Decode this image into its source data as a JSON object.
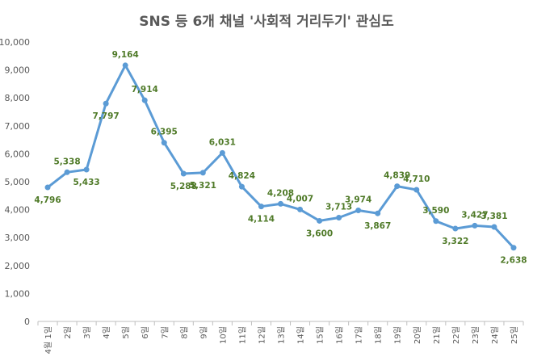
{
  "chart_data": {
    "type": "line",
    "title": "SNS 등 6개 채널 '사회적 거리두기' 관심도",
    "xlabel": "",
    "ylabel": "",
    "categories": [
      "4월 1일",
      "2일",
      "3일",
      "4일",
      "5일",
      "6일",
      "7일",
      "8일",
      "9일",
      "10일",
      "11일",
      "12일",
      "13일",
      "14일",
      "15일",
      "16일",
      "17일",
      "18일",
      "19일",
      "20일",
      "21일",
      "22일",
      "23일",
      "24일",
      "25일"
    ],
    "series": [
      {
        "values": [
          4796,
          5338,
          5433,
          7797,
          9164,
          7914,
          6395,
          5288,
          5321,
          6031,
          4824,
          4114,
          4208,
          4007,
          3600,
          3713,
          3974,
          3867,
          4839,
          4710,
          3590,
          3322,
          3427,
          3381,
          2638
        ]
      }
    ],
    "data_labels": [
      "4,796",
      "5,338",
      "5,433",
      "7,797",
      "9,164",
      "7,914",
      "6,395",
      "5,288",
      "5,321",
      "6,031",
      "4,824",
      "4,114",
      "4,208",
      "4,007",
      "3,600",
      "3,713",
      "3,974",
      "3,867",
      "4,839",
      "4,710",
      "3,590",
      "3,322",
      "3,427",
      "3,381",
      "2,638"
    ],
    "label_above": [
      false,
      true,
      false,
      false,
      true,
      true,
      true,
      false,
      false,
      true,
      true,
      false,
      true,
      true,
      false,
      true,
      true,
      false,
      true,
      true,
      true,
      false,
      true,
      true,
      false
    ],
    "yticks": [
      "0",
      "1,000",
      "2,000",
      "3,000",
      "4,000",
      "5,000",
      "6,000",
      "7,000",
      "8,000",
      "9,000",
      "10,000"
    ],
    "ylim": [
      0,
      10000
    ],
    "grid": false,
    "legend": "none",
    "colors": {
      "line": "#5b9bd5",
      "label": "#4f7a28",
      "axis": "#bfbfbf",
      "text": "#595959"
    }
  }
}
